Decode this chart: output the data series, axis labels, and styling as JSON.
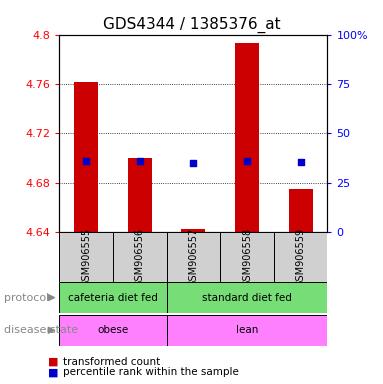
{
  "title": "GDS4344 / 1385376_at",
  "categories": [
    "GSM906555",
    "GSM906556",
    "GSM906557",
    "GSM906558",
    "GSM906559"
  ],
  "bar_values": [
    4.762,
    4.7,
    4.643,
    4.793,
    4.675
  ],
  "blue_values": [
    4.698,
    4.698,
    4.696,
    4.698,
    4.697
  ],
  "baseline": 4.64,
  "ylim_left": [
    4.64,
    4.8
  ],
  "ylim_right": [
    0,
    100
  ],
  "yticks_left": [
    4.64,
    4.68,
    4.72,
    4.76,
    4.8
  ],
  "ytick_labels_left": [
    "4.64",
    "4.68",
    "4.72",
    "4.76",
    "4.8"
  ],
  "yticks_right": [
    0,
    25,
    50,
    75,
    100
  ],
  "ytick_labels_right": [
    "0",
    "25",
    "50",
    "75",
    "100%"
  ],
  "bar_color": "#cc0000",
  "blue_color": "#0000cc",
  "protocol_labels": [
    "cafeteria diet fed",
    "standard diet fed"
  ],
  "disease_labels": [
    "obese",
    "lean"
  ],
  "legend_red": "transformed count",
  "legend_blue": "percentile rank within the sample",
  "protocol_text": "protocol",
  "disease_text": "disease state",
  "background_color": "#ffffff",
  "title_fontsize": 11,
  "tick_fontsize": 8,
  "green_color": "#77dd77",
  "magenta_color": "#ff80ff",
  "gray_color": "#d0d0d0"
}
